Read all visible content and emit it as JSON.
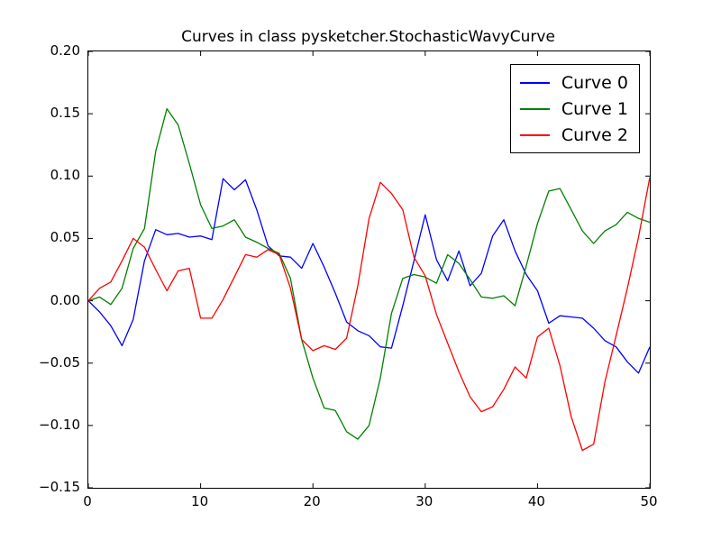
{
  "figure": {
    "background": "#ffffff",
    "axes_border_color": "#000000"
  },
  "chart_data": {
    "type": "line",
    "title": "Curves in class pysketcher.StochasticWavyCurve",
    "xlabel": "",
    "ylabel": "",
    "grid": false,
    "xlim": [
      0,
      50
    ],
    "ylim": [
      -0.15,
      0.2
    ],
    "xticks": [
      0,
      10,
      20,
      30,
      40,
      50
    ],
    "xtick_labels": [
      "0",
      "10",
      "20",
      "30",
      "40",
      "50"
    ],
    "yticks": [
      -0.15,
      -0.1,
      -0.05,
      0.0,
      0.05,
      0.1,
      0.15,
      0.2
    ],
    "ytick_labels": [
      "−0.15",
      "−0.10",
      "−0.05",
      "0.00",
      "0.05",
      "0.10",
      "0.15",
      "0.20"
    ],
    "legend": {
      "position": "upper right",
      "entries": [
        "Curve 0",
        "Curve 1",
        "Curve 2"
      ]
    },
    "x": [
      0,
      1,
      2,
      3,
      4,
      5,
      6,
      7,
      8,
      9,
      10,
      11,
      12,
      13,
      14,
      15,
      16,
      17,
      18,
      19,
      20,
      21,
      22,
      23,
      24,
      25,
      26,
      27,
      28,
      29,
      30,
      31,
      32,
      33,
      34,
      35,
      36,
      37,
      38,
      39,
      40,
      41,
      42,
      43,
      44,
      45,
      46,
      47,
      48,
      49,
      50
    ],
    "series": [
      {
        "name": "Curve 0",
        "color": "#0000ff",
        "values": [
          0.0,
          -0.009,
          -0.02,
          -0.036,
          -0.015,
          0.032,
          0.057,
          0.053,
          0.054,
          0.051,
          0.052,
          0.049,
          0.098,
          0.089,
          0.097,
          0.073,
          0.044,
          0.036,
          0.035,
          0.026,
          0.046,
          0.027,
          0.006,
          -0.017,
          -0.024,
          -0.028,
          -0.037,
          -0.038,
          -0.004,
          0.032,
          0.069,
          0.033,
          0.016,
          0.04,
          0.012,
          0.022,
          0.052,
          0.065,
          0.04,
          0.021,
          0.008,
          -0.018,
          -0.012,
          -0.013,
          -0.014,
          -0.022,
          -0.032,
          -0.037,
          -0.049,
          -0.058,
          -0.037
        ]
      },
      {
        "name": "Curve 1",
        "color": "#008000",
        "values": [
          0.0,
          0.003,
          -0.003,
          0.01,
          0.042,
          0.058,
          0.12,
          0.154,
          0.141,
          0.11,
          0.077,
          0.058,
          0.06,
          0.065,
          0.051,
          0.047,
          0.042,
          0.038,
          0.018,
          -0.031,
          -0.062,
          -0.086,
          -0.088,
          -0.105,
          -0.111,
          -0.1,
          -0.062,
          -0.01,
          0.018,
          0.021,
          0.019,
          0.014,
          0.037,
          0.03,
          0.017,
          0.003,
          0.002,
          0.004,
          -0.004,
          0.028,
          0.062,
          0.088,
          0.09,
          0.073,
          0.056,
          0.046,
          0.056,
          0.061,
          0.071,
          0.066,
          0.063
        ]
      },
      {
        "name": "Curve 2",
        "color": "#ff0000",
        "values": [
          0.0,
          0.01,
          0.015,
          0.032,
          0.05,
          0.043,
          0.025,
          0.008,
          0.024,
          0.026,
          -0.014,
          -0.014,
          0.001,
          0.019,
          0.037,
          0.035,
          0.041,
          0.037,
          0.01,
          -0.031,
          -0.04,
          -0.036,
          -0.039,
          -0.03,
          0.012,
          0.066,
          0.095,
          0.086,
          0.073,
          0.035,
          0.02,
          -0.011,
          -0.034,
          -0.057,
          -0.077,
          -0.089,
          -0.085,
          -0.071,
          -0.053,
          -0.062,
          -0.029,
          -0.022,
          -0.052,
          -0.093,
          -0.12,
          -0.115,
          -0.065,
          -0.028,
          0.01,
          0.051,
          0.099
        ]
      }
    ]
  }
}
